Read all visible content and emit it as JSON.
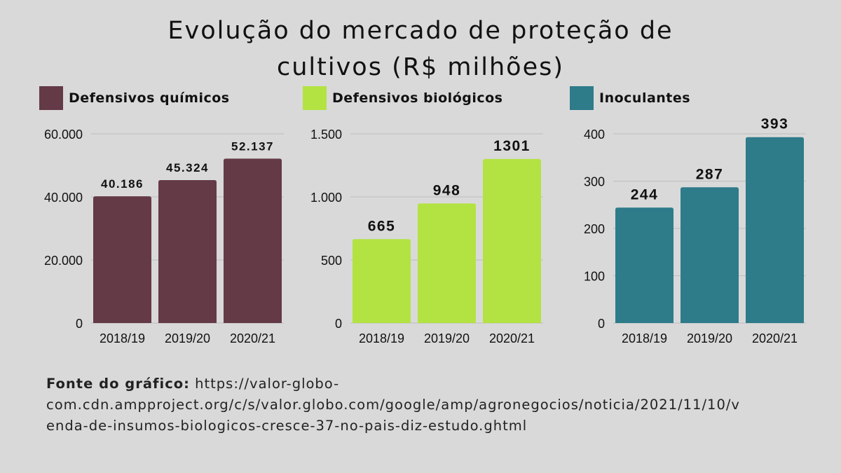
{
  "title_lines": [
    "Evolução do mercado de proteção de",
    "cultivos (R$ milhões)"
  ],
  "source": {
    "label": "Fonte do gráfico:",
    "url_line1": "https://valor-globo-",
    "url_line2": "com.cdn.ampproject.org/c/s/valor.globo.com/google/amp/agronegocios/noticia/2021/11/10/v",
    "url_line3": "enda-de-insumos-biologicos-cresce-37-no-pais-diz-estudo.ghtml"
  },
  "chart_data": [
    {
      "type": "bar",
      "legend": "Defensivos químicos",
      "color": "#643a46",
      "categories": [
        "2018/19",
        "2019/20",
        "2020/21"
      ],
      "values": [
        40186,
        45324,
        52137
      ],
      "value_labels": [
        "40.186",
        "45.324",
        "52.137"
      ],
      "yticks": [
        0,
        20000,
        40000,
        60000
      ],
      "ytick_labels": [
        "0",
        "20.000",
        "40.000",
        "60.000"
      ],
      "ylim": [
        0,
        60000
      ],
      "grid": true
    },
    {
      "type": "bar",
      "legend": "Defensivos biológicos",
      "color": "#b3e342",
      "categories": [
        "2018/19",
        "2019/20",
        "2020/21"
      ],
      "values": [
        665,
        948,
        1301
      ],
      "value_labels": [
        "665",
        "948",
        "1301"
      ],
      "yticks": [
        0,
        500,
        1000,
        1500
      ],
      "ytick_labels": [
        "0",
        "500",
        "1.000",
        "1.500"
      ],
      "ylim": [
        0,
        1500
      ],
      "grid": true
    },
    {
      "type": "bar",
      "legend": "Inoculantes",
      "color": "#2e7b8a",
      "categories": [
        "2018/19",
        "2019/20",
        "2020/21"
      ],
      "values": [
        244,
        287,
        393
      ],
      "value_labels": [
        "244",
        "287",
        "393"
      ],
      "yticks": [
        0,
        100,
        200,
        300,
        400
      ],
      "ytick_labels": [
        "0",
        "100",
        "200",
        "300",
        "400"
      ],
      "ylim": [
        0,
        400
      ],
      "grid": true
    }
  ]
}
